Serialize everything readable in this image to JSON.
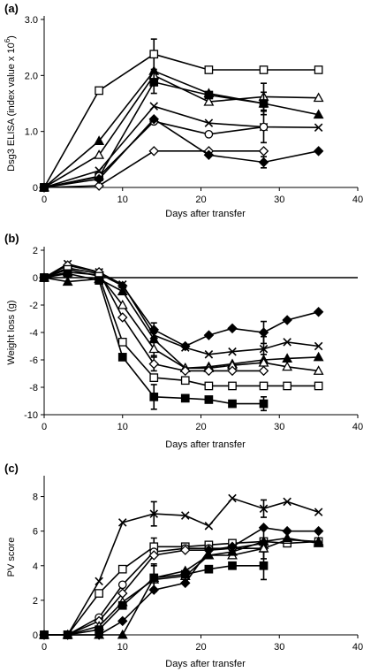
{
  "chart_data": [
    {
      "panel": "(a)",
      "type": "line",
      "xlabel": "Days after transfer",
      "ylabel": "Dsg3 ELISA (index value x 10",
      "ylabel_sup": "6",
      "ylabel_end": ")",
      "xlim": [
        0,
        40
      ],
      "ylim": [
        0,
        3.0
      ],
      "xticks": [
        "0",
        "10",
        "20",
        "30",
        "40"
      ],
      "yticks": [
        "0",
        "1.0",
        "2.0",
        "3.0"
      ],
      "ytick_values": [
        0,
        1,
        2,
        3
      ],
      "grid": false,
      "series": [
        {
          "marker": "open-square",
          "x": [
            0,
            7,
            14,
            21,
            28,
            35
          ],
          "y": [
            0,
            1.73,
            2.38,
            2.1,
            2.1,
            2.1
          ],
          "err": [
            0,
            0,
            0.27,
            0,
            0,
            0
          ]
        },
        {
          "marker": "filled-triangle",
          "x": [
            0,
            7,
            14,
            21,
            28,
            35
          ],
          "y": [
            0,
            0.83,
            2.08,
            1.68,
            1.5,
            1.3
          ],
          "err": [
            0,
            0,
            0,
            0,
            0,
            0
          ]
        },
        {
          "marker": "open-triangle",
          "x": [
            0,
            7,
            14,
            21,
            28,
            35
          ],
          "y": [
            0,
            0.58,
            2.0,
            1.53,
            1.62,
            1.6
          ],
          "err": [
            0,
            0,
            0,
            0,
            0.24,
            0
          ]
        },
        {
          "marker": "filled-square",
          "x": [
            0,
            7,
            14,
            21,
            28
          ],
          "y": [
            0,
            0.19,
            1.88,
            1.65,
            1.5
          ],
          "err": [
            0,
            0,
            0.2,
            0,
            0.2
          ]
        },
        {
          "marker": "cross",
          "x": [
            0,
            7,
            14,
            21,
            28,
            35
          ],
          "y": [
            0,
            0.3,
            1.45,
            1.15,
            1.08,
            1.07
          ],
          "err": [
            0,
            0,
            0,
            0,
            0,
            0
          ]
        },
        {
          "marker": "open-circle",
          "x": [
            0,
            7,
            14,
            21,
            28
          ],
          "y": [
            0,
            0.2,
            1.18,
            0.95,
            1.08
          ],
          "err": [
            0,
            0,
            0,
            0,
            0.28
          ]
        },
        {
          "marker": "open-diamond",
          "x": [
            0,
            7,
            14,
            21,
            28
          ],
          "y": [
            0,
            0.03,
            0.65,
            0.65,
            0.65
          ],
          "err": [
            0,
            0,
            0,
            0,
            0
          ]
        },
        {
          "marker": "filled-diamond",
          "x": [
            0,
            7,
            14,
            21,
            28,
            35
          ],
          "y": [
            0,
            0.15,
            1.22,
            0.58,
            0.45,
            0.65
          ],
          "err": [
            0,
            0,
            0,
            0,
            0.1,
            0
          ]
        }
      ]
    },
    {
      "panel": "(b)",
      "type": "line",
      "xlabel": "Days after transfer",
      "ylabel": "Weight loss (g)",
      "xlim": [
        0,
        40
      ],
      "ylim": [
        -10,
        2
      ],
      "xticks": [
        "0",
        "10",
        "20",
        "30",
        "40"
      ],
      "yticks": [
        "-10",
        "-8",
        "-6",
        "-4",
        "-2",
        "0",
        "2"
      ],
      "ytick_values": [
        -10,
        -8,
        -6,
        -4,
        -2,
        0,
        2
      ],
      "grid": false,
      "series": [
        {
          "marker": "line",
          "x": [
            0,
            40
          ],
          "y": [
            0,
            0
          ],
          "err": [
            0,
            0
          ]
        },
        {
          "marker": "filled-diamond",
          "x": [
            0,
            3,
            7,
            10,
            14,
            18,
            21,
            24,
            28,
            31,
            35
          ],
          "y": [
            0,
            0.7,
            0.3,
            -0.6,
            -3.8,
            -5.0,
            -4.2,
            -3.7,
            -4.0,
            -3.1,
            -2.5
          ],
          "err": [
            0,
            0,
            0,
            0,
            0,
            0,
            0,
            0,
            0.8,
            0,
            0
          ]
        },
        {
          "marker": "cross",
          "x": [
            0,
            3,
            7,
            10,
            14,
            18,
            21,
            24,
            28,
            31,
            35
          ],
          "y": [
            0,
            1.0,
            0.4,
            -0.5,
            -4.2,
            -5.1,
            -5.6,
            -5.4,
            -5.2,
            -4.7,
            -5.0
          ],
          "err": [
            0,
            0,
            0,
            0,
            0,
            0,
            0,
            0,
            0.9,
            0,
            0
          ]
        },
        {
          "marker": "filled-triangle",
          "x": [
            0,
            3,
            7,
            10,
            14,
            18,
            21,
            24,
            28,
            31,
            35
          ],
          "y": [
            0,
            -0.3,
            -0.1,
            -1.0,
            -4.5,
            -6.6,
            -6.5,
            -6.3,
            -6.0,
            -5.9,
            -5.8
          ],
          "err": [
            0,
            0,
            0,
            0,
            1.2,
            0,
            0,
            0,
            0,
            0,
            0
          ]
        },
        {
          "marker": "open-triangle",
          "x": [
            0,
            3,
            7,
            10,
            14,
            18,
            21,
            24,
            28,
            31,
            35
          ],
          "y": [
            0,
            0.4,
            0.2,
            -2.0,
            -5.2,
            -6.6,
            -6.6,
            -6.4,
            -6.2,
            -6.5,
            -6.8
          ],
          "err": [
            0,
            0,
            0,
            0,
            0,
            0,
            0,
            0,
            0.6,
            0,
            0
          ]
        },
        {
          "marker": "open-diamond",
          "x": [
            0,
            3,
            7,
            10,
            14,
            18,
            21,
            24,
            28
          ],
          "y": [
            0,
            0.9,
            0.4,
            -2.9,
            -6.3,
            -6.8,
            -6.8,
            -6.8,
            -6.8
          ],
          "err": [
            0,
            0,
            0,
            0,
            0.5,
            0,
            0,
            0,
            0
          ]
        },
        {
          "marker": "open-square",
          "x": [
            0,
            3,
            7,
            10,
            14,
            18,
            21,
            24,
            28,
            31,
            35
          ],
          "y": [
            0,
            0.6,
            0.1,
            -4.7,
            -7.3,
            -7.5,
            -7.9,
            -7.9,
            -7.9,
            -7.9,
            -7.9
          ],
          "err": [
            0,
            0,
            0,
            0,
            0,
            0,
            0,
            0,
            0,
            0,
            0
          ]
        },
        {
          "marker": "filled-square",
          "x": [
            0,
            3,
            7,
            10,
            14,
            18,
            21,
            24,
            28
          ],
          "y": [
            0,
            0.3,
            -0.2,
            -5.8,
            -8.7,
            -8.8,
            -8.9,
            -9.2,
            -9.2
          ],
          "err": [
            0,
            0,
            0,
            0,
            0.9,
            0,
            0,
            0,
            0.5
          ]
        }
      ]
    },
    {
      "panel": "(c)",
      "type": "line",
      "xlabel": "Days after transfer",
      "ylabel": "PV score",
      "xlim": [
        0,
        40
      ],
      "ylim": [
        0,
        9
      ],
      "xticks": [
        "0",
        "10",
        "20",
        "30",
        "40"
      ],
      "yticks": [
        "0",
        "2",
        "4",
        "6",
        "8"
      ],
      "ytick_values": [
        0,
        2,
        4,
        6,
        8
      ],
      "grid": false,
      "series": [
        {
          "marker": "cross",
          "x": [
            0,
            3,
            7,
            10,
            14,
            18,
            21,
            24,
            28,
            31,
            35
          ],
          "y": [
            0,
            0,
            3.1,
            6.5,
            7.0,
            6.9,
            6.3,
            7.9,
            7.3,
            7.7,
            7.1
          ],
          "err": [
            0,
            0,
            0,
            0,
            0.7,
            0,
            0,
            0,
            0.5,
            0,
            0
          ]
        },
        {
          "marker": "open-square",
          "x": [
            0,
            3,
            7,
            10,
            14,
            18,
            21,
            24,
            28,
            31,
            35
          ],
          "y": [
            0,
            0,
            2.4,
            3.8,
            5.1,
            5.1,
            5.2,
            5.3,
            5.4,
            5.3,
            5.4
          ],
          "err": [
            0,
            0,
            0,
            0,
            0.5,
            0,
            0,
            0,
            0,
            0,
            0
          ]
        },
        {
          "marker": "open-circle",
          "x": [
            0,
            3,
            7,
            10,
            14,
            18,
            21,
            24,
            28
          ],
          "y": [
            0,
            0,
            1.0,
            2.9,
            4.8,
            5.0,
            5.0,
            5.0,
            5.3
          ],
          "err": [
            0,
            0,
            0,
            0,
            0,
            0,
            0,
            0,
            0.9
          ]
        },
        {
          "marker": "open-diamond",
          "x": [
            0,
            3,
            7,
            10,
            14,
            18,
            21,
            24,
            28
          ],
          "y": [
            0,
            0,
            0.8,
            2.4,
            4.6,
            4.9,
            4.9,
            5.0,
            5.0
          ],
          "err": [
            0,
            0,
            0,
            0,
            0,
            0,
            0,
            0,
            0
          ]
        },
        {
          "marker": "open-triangle",
          "x": [
            0,
            3,
            7,
            10,
            14,
            18,
            21,
            24,
            28,
            31,
            35
          ],
          "y": [
            0,
            0,
            0.5,
            1.9,
            3.2,
            3.4,
            4.6,
            4.6,
            5.0,
            5.5,
            5.4
          ],
          "err": [
            0,
            0,
            0,
            0,
            0,
            0,
            0,
            0,
            0,
            0,
            0
          ]
        },
        {
          "marker": "filled-triangle",
          "x": [
            0,
            3,
            7,
            10,
            14,
            18,
            21,
            24,
            28,
            31,
            35
          ],
          "y": [
            0,
            0,
            0,
            0,
            3.3,
            3.7,
            4.6,
            4.8,
            5.4,
            5.6,
            5.3
          ],
          "err": [
            0,
            0,
            0,
            0,
            0.7,
            0,
            0,
            0,
            0,
            0,
            0
          ]
        },
        {
          "marker": "filled-diamond",
          "x": [
            0,
            3,
            7,
            10,
            14,
            18,
            21,
            24,
            28,
            31,
            35
          ],
          "y": [
            0,
            0,
            0,
            0.8,
            2.6,
            3.0,
            4.9,
            5.1,
            6.2,
            6.0,
            6.0
          ],
          "err": [
            0,
            0,
            0,
            0,
            0,
            0,
            0,
            0,
            0,
            0,
            0
          ]
        },
        {
          "marker": "filled-square",
          "x": [
            0,
            3,
            7,
            10,
            14,
            18,
            21,
            24,
            28
          ],
          "y": [
            0,
            0,
            0.3,
            1.7,
            3.3,
            3.5,
            3.8,
            4.0,
            4.0
          ],
          "err": [
            0,
            0,
            0,
            0,
            0.8,
            0,
            0,
            0,
            0.8
          ]
        }
      ]
    }
  ]
}
